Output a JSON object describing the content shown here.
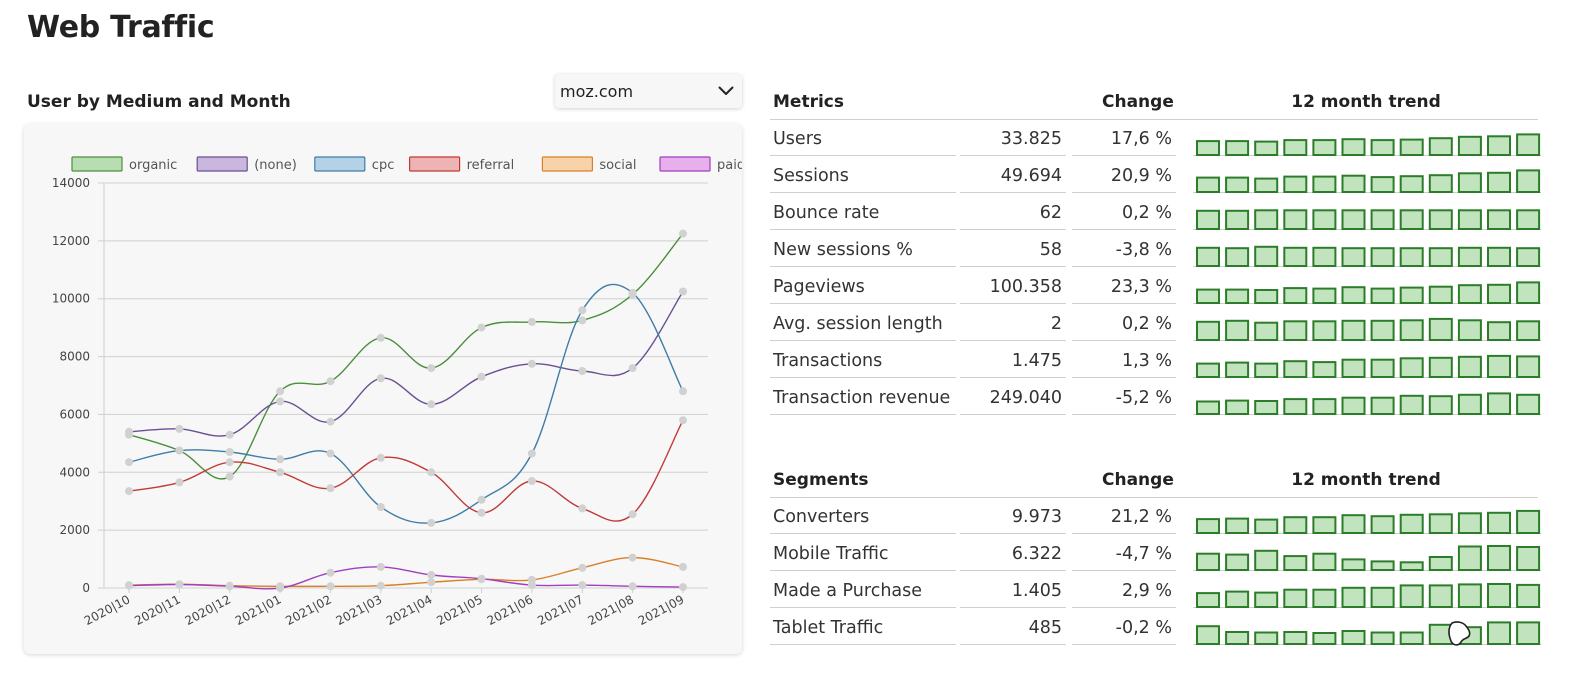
{
  "page": {
    "title": "Web Traffic"
  },
  "chart_section": {
    "heading": "User by Medium and Month",
    "site_selector": {
      "value": "moz.com",
      "icon": "chevron-down-icon"
    }
  },
  "chart_data": {
    "type": "line",
    "title": "",
    "xlabel": "",
    "ylabel": "",
    "x": [
      "2020|10",
      "2020|11",
      "2020|12",
      "2021|01",
      "2021|02",
      "2021|03",
      "2021|04",
      "2021|05",
      "2021|06",
      "2021|07",
      "2021|08",
      "2021|09"
    ],
    "ylim": [
      0,
      14000
    ],
    "yticks": [
      0,
      2000,
      4000,
      6000,
      8000,
      10000,
      12000,
      14000
    ],
    "grid": true,
    "legend_position": "top",
    "series": [
      {
        "name": "organic",
        "color": "#4a8f3c",
        "fill": "#b9ddb3",
        "values": [
          5300,
          4750,
          3850,
          6800,
          7150,
          8650,
          7600,
          9000,
          9200,
          9250,
          10150,
          12250
        ]
      },
      {
        "name": "(none)",
        "color": "#6b4f93",
        "fill": "#c9b7dd",
        "values": [
          5400,
          5500,
          5300,
          6450,
          5750,
          7250,
          6350,
          7300,
          7750,
          7500,
          7600,
          10250
        ]
      },
      {
        "name": "cpc",
        "color": "#3f7ca6",
        "fill": "#b5d1e6",
        "values": [
          4350,
          4750,
          4700,
          4450,
          4650,
          2800,
          2250,
          3050,
          4650,
          9600,
          10200,
          6800
        ]
      },
      {
        "name": "referral",
        "color": "#c03a37",
        "fill": "#eeb3b3",
        "values": [
          3350,
          3650,
          4350,
          4000,
          3450,
          4500,
          4000,
          2600,
          3700,
          2750,
          2550,
          5800
        ]
      },
      {
        "name": "social",
        "color": "#d97f29",
        "fill": "#f8d2a8",
        "values": [
          100,
          130,
          80,
          60,
          60,
          80,
          200,
          300,
          280,
          700,
          1050,
          730
        ]
      },
      {
        "name": "paid",
        "color": "#a13fbf",
        "fill": "#e7b0ec",
        "values": [
          80,
          120,
          60,
          0,
          530,
          730,
          450,
          320,
          100,
          100,
          60,
          30
        ]
      }
    ]
  },
  "metrics": {
    "header": {
      "label": "Metrics",
      "change": "Change",
      "trend": "12 month trend"
    },
    "rows": [
      {
        "label": "Users",
        "value": "33.825",
        "change": "17,6 %",
        "trend": [
          29,
          29,
          28,
          31,
          31,
          33,
          31,
          32,
          35,
          38,
          39,
          43
        ]
      },
      {
        "label": "Sessions",
        "value": "49.694",
        "change": "20,9 %",
        "trend": [
          30,
          30,
          28,
          32,
          32,
          34,
          31,
          33,
          35,
          39,
          40,
          45
        ]
      },
      {
        "label": "Bounce rate",
        "value": "62",
        "change": "0,2 %",
        "trend": [
          38,
          38,
          39,
          39,
          39,
          39,
          39,
          39,
          39,
          39,
          39,
          39
        ]
      },
      {
        "label": "New sessions %",
        "value": "58",
        "change": "-3,8 %",
        "trend": [
          38,
          37,
          40,
          38,
          38,
          37,
          37,
          37,
          37,
          38,
          38,
          37
        ]
      },
      {
        "label": "Pageviews",
        "value": "100.358",
        "change": "23,3 %",
        "trend": [
          28,
          28,
          27,
          31,
          30,
          33,
          30,
          32,
          34,
          37,
          38,
          43
        ]
      },
      {
        "label": "Avg. session length",
        "value": "2",
        "change": "0,2 %",
        "trend": [
          38,
          40,
          36,
          39,
          39,
          40,
          40,
          41,
          44,
          41,
          37,
          39
        ]
      },
      {
        "label": "Transactions",
        "value": "1.475",
        "change": "1,3 %",
        "trend": [
          28,
          30,
          28,
          33,
          31,
          36,
          36,
          39,
          40,
          42,
          44,
          43
        ]
      },
      {
        "label": "Transaction revenue",
        "value": "249.040",
        "change": "-5,2 %",
        "trend": [
          26,
          28,
          27,
          31,
          31,
          34,
          34,
          38,
          37,
          40,
          43,
          40
        ]
      }
    ]
  },
  "segments": {
    "header": {
      "label": "Segments",
      "change": "Change",
      "trend": "12 month trend"
    },
    "rows": [
      {
        "label": "Converters",
        "value": "9.973",
        "change": "21,2 %",
        "trend": [
          29,
          30,
          28,
          33,
          33,
          37,
          35,
          38,
          39,
          41,
          42,
          46
        ]
      },
      {
        "label": "Mobile Traffic",
        "value": "6.322",
        "change": "-4,7 %",
        "trend": [
          34,
          32,
          40,
          29,
          34,
          22,
          18,
          16,
          27,
          49,
          50,
          48
        ]
      },
      {
        "label": "Made a Purchase",
        "value": "1.405",
        "change": "2,9 %",
        "trend": [
          29,
          32,
          30,
          36,
          36,
          40,
          40,
          45,
          45,
          47,
          48,
          46
        ]
      },
      {
        "label": "Tablet Traffic",
        "value": "485",
        "change": "-0,2 %",
        "trend": [
          37,
          25,
          24,
          25,
          23,
          27,
          24,
          24,
          40,
          35,
          45,
          45
        ]
      }
    ]
  },
  "colors": {
    "bar_fill": "#c1e3be",
    "bar_stroke": "#2c7d2a",
    "grid": "#d0d0d0",
    "point": "#d1d1d1"
  }
}
